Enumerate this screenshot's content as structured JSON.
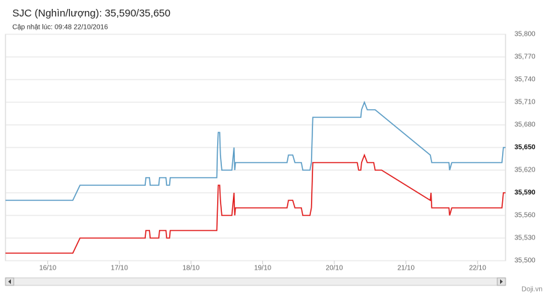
{
  "chart_data": {
    "type": "line",
    "title": "SJC (Nghìn/lượng): 35,590/35,650",
    "subtitle": "Cập nhật lúc: 09:48 22/10/2016",
    "credit": "Doji.vn",
    "xlim": [
      15.41,
      22.39
    ],
    "xticks": [
      {
        "value": 16,
        "label": "16/10"
      },
      {
        "value": 17,
        "label": "17/10"
      },
      {
        "value": 18,
        "label": "18/10"
      },
      {
        "value": 19,
        "label": "19/10"
      },
      {
        "value": 20,
        "label": "20/10"
      },
      {
        "value": 21,
        "label": "21/10"
      },
      {
        "value": 22,
        "label": "22/10"
      }
    ],
    "ylim": [
      35500,
      35800
    ],
    "yticks": [
      {
        "value": 35500,
        "label": "35,500"
      },
      {
        "value": 35530,
        "label": "35,530"
      },
      {
        "value": 35560,
        "label": "35,560"
      },
      {
        "value": 35590,
        "label": "35,590"
      },
      {
        "value": 35620,
        "label": "35,620"
      },
      {
        "value": 35650,
        "label": "35,650"
      },
      {
        "value": 35680,
        "label": "35,680"
      },
      {
        "value": 35710,
        "label": "35,710"
      },
      {
        "value": 35740,
        "label": "35,740"
      },
      {
        "value": 35770,
        "label": "35,770"
      },
      {
        "value": 35800,
        "label": "35,800"
      }
    ],
    "grid": true,
    "series": [
      {
        "color": "#5a9cc5",
        "end_label": "35,650",
        "x": [
          15.41,
          16.35,
          16.45,
          17.36,
          17.37,
          17.42,
          17.43,
          17.55,
          17.56,
          17.65,
          17.66,
          17.7,
          17.71,
          18.36,
          18.37,
          18.38,
          18.4,
          18.41,
          18.43,
          18.57,
          18.59,
          18.6,
          18.61,
          18.62,
          19.34,
          19.36,
          19.42,
          19.45,
          19.54,
          19.56,
          19.66,
          19.68,
          19.7,
          20.37,
          20.38,
          20.42,
          20.46,
          20.57,
          21.34,
          21.36,
          21.6,
          21.61,
          21.64,
          22.34,
          22.36,
          22.39
        ],
        "values": [
          35580,
          35580,
          35600,
          35600,
          35610,
          35610,
          35600,
          35600,
          35610,
          35610,
          35600,
          35600,
          35610,
          35610,
          35650,
          35670,
          35670,
          35640,
          35620,
          35620,
          35640,
          35650,
          35620,
          35630,
          35630,
          35640,
          35640,
          35630,
          35630,
          35620,
          35620,
          35630,
          35690,
          35690,
          35700,
          35710,
          35700,
          35700,
          35640,
          35630,
          35630,
          35620,
          35630,
          35630,
          35650,
          35650
        ]
      },
      {
        "color": "#e01b1b",
        "end_label": "35,590",
        "x": [
          15.41,
          16.35,
          16.45,
          17.36,
          17.37,
          17.42,
          17.43,
          17.55,
          17.56,
          17.65,
          17.66,
          17.7,
          17.71,
          18.36,
          18.37,
          18.38,
          18.4,
          18.41,
          18.43,
          18.57,
          18.59,
          18.6,
          18.61,
          18.62,
          19.34,
          19.36,
          19.42,
          19.45,
          19.54,
          19.56,
          19.66,
          19.68,
          19.7,
          20.32,
          20.34,
          20.37,
          20.38,
          20.42,
          20.46,
          20.55,
          20.57,
          20.66,
          21.34,
          21.35,
          21.36,
          21.6,
          21.61,
          21.64,
          22.34,
          22.36,
          22.39
        ],
        "values": [
          35510,
          35510,
          35530,
          35530,
          35540,
          35540,
          35530,
          35530,
          35540,
          35540,
          35530,
          35530,
          35540,
          35540,
          35570,
          35600,
          35600,
          35580,
          35560,
          35560,
          35580,
          35590,
          35560,
          35570,
          35570,
          35580,
          35580,
          35570,
          35570,
          35560,
          35560,
          35570,
          35630,
          35630,
          35620,
          35620,
          35630,
          35640,
          35630,
          35630,
          35620,
          35620,
          35580,
          35590,
          35570,
          35570,
          35560,
          35570,
          35570,
          35590,
          35590
        ]
      }
    ]
  }
}
